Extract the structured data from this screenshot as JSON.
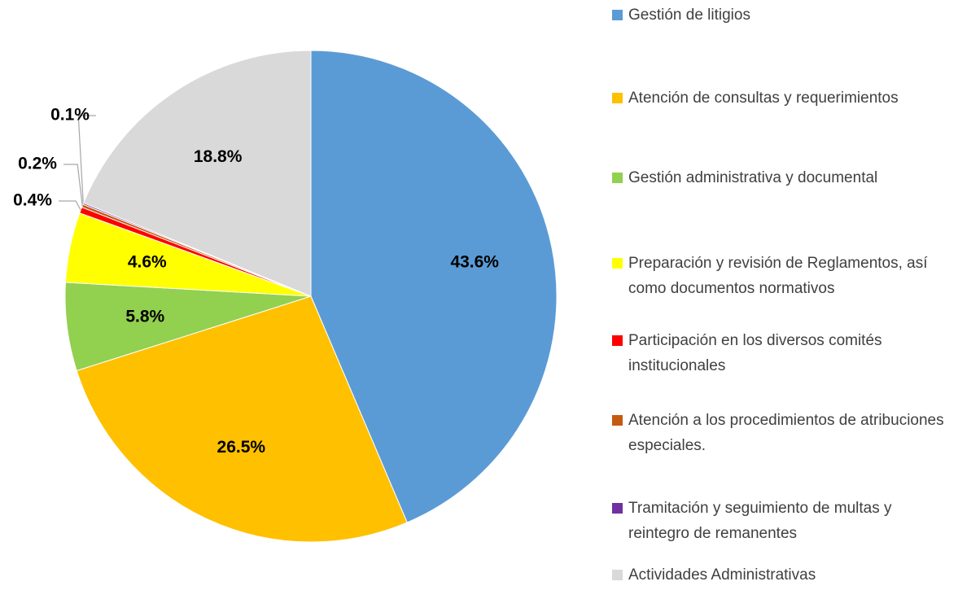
{
  "chart_data": {
    "type": "pie",
    "categories": [
      "Gestión de litigios",
      "Atención de consultas y requerimientos",
      "Gestión administrativa y documental",
      "Preparación y revisión  de Reglamentos, así como documentos normativos",
      "Participación en los diversos comités institucionales",
      "Atención a los procedimientos de atribuciones especiales.",
      "Tramitación y seguimiento de multas y reintegro de remanentes",
      "Actividades Administrativas"
    ],
    "values": [
      43.6,
      26.5,
      5.8,
      4.6,
      0.4,
      0.2,
      0.1,
      18.8
    ],
    "value_labels": [
      "43.6%",
      "26.5%",
      "5.8%",
      "4.6%",
      "0.4%",
      "0.2%",
      "0.1%",
      "18.8%"
    ],
    "colors": [
      "#5B9BD5",
      "#FFC000",
      "#92D050",
      "#FFFF00",
      "#FF0000",
      "#C55A11",
      "#7030A0",
      "#D9D9D9"
    ],
    "legend": "right"
  }
}
